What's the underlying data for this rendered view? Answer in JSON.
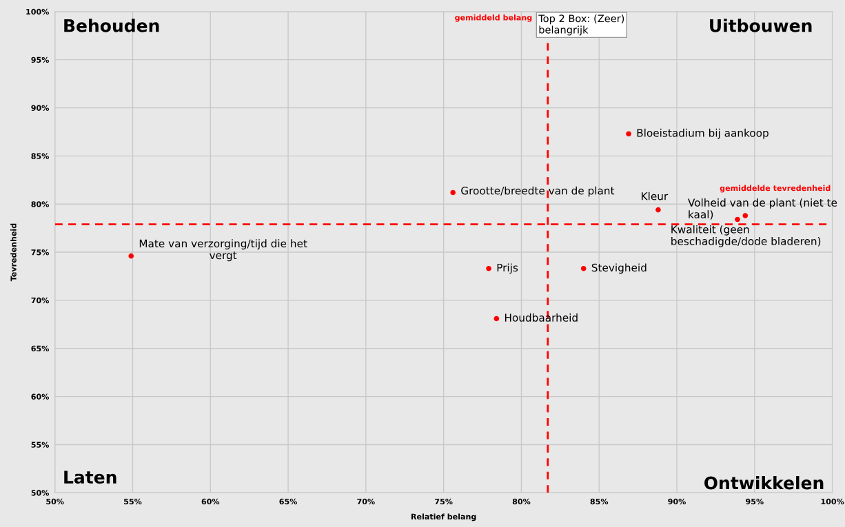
{
  "chart_data": {
    "type": "scatter",
    "xlabel": "Relatief belang",
    "ylabel": "Tevredenheid",
    "series": [
      {
        "color": "#ff0000",
        "x": [
          54.9,
          75.6,
          77.9,
          78.4,
          84.0,
          86.9,
          88.8,
          94.4,
          93.9
        ],
        "values": [
          74.6,
          81.2,
          73.3,
          68.1,
          73.3,
          87.3,
          79.4,
          78.8,
          78.4
        ]
      }
    ],
    "marker": "circle",
    "xlim": [
      50,
      100
    ],
    "xticks": [
      {
        "value": 50,
        "label": "50%"
      },
      {
        "value": 55,
        "label": "55%"
      },
      {
        "value": 60,
        "label": "60%"
      },
      {
        "value": 65,
        "label": "65%"
      },
      {
        "value": 70,
        "label": "70%"
      },
      {
        "value": 75,
        "label": "75%"
      },
      {
        "value": 80,
        "label": "80%"
      },
      {
        "value": 85,
        "label": "85%"
      },
      {
        "value": 90,
        "label": "90%"
      },
      {
        "value": 95,
        "label": "95%"
      },
      {
        "value": 100,
        "label": "100%"
      }
    ],
    "ylim": [
      50,
      100
    ],
    "yticks": [
      {
        "value": 50,
        "label": "50%"
      },
      {
        "value": 55,
        "label": "55%"
      },
      {
        "value": 60,
        "label": "60%"
      },
      {
        "value": 65,
        "label": "65%"
      },
      {
        "value": 70,
        "label": "70%"
      },
      {
        "value": 75,
        "label": "75%"
      },
      {
        "value": 80,
        "label": "80%"
      },
      {
        "value": 85,
        "label": "85%"
      },
      {
        "value": 90,
        "label": "90%"
      },
      {
        "value": 95,
        "label": "95%"
      },
      {
        "value": 100,
        "label": "100%"
      }
    ],
    "grid": true,
    "ref_lines": [
      {
        "axis": "x",
        "value": 81.7,
        "label": "gemiddeld belang",
        "color": "#ff0000",
        "line_style": "dashed"
      },
      {
        "axis": "y",
        "value": 77.9,
        "label": "gemiddelde tevredenheid",
        "color": "#ff0000",
        "line_style": "dashed"
      }
    ],
    "annotations": [
      {
        "text": "Mate van verzorging/tijd die het\nvergt",
        "x": 54.9,
        "y": 74.6
      },
      {
        "text": "Grootte/breedte van de plant",
        "x": 75.6,
        "y": 81.2
      },
      {
        "text": "Prijs",
        "x": 77.9,
        "y": 73.3
      },
      {
        "text": "Houdbaarheid",
        "x": 78.4,
        "y": 68.1
      },
      {
        "text": "Stevigheid",
        "x": 84.0,
        "y": 73.3
      },
      {
        "text": "Bloeistadium bij aankoop",
        "x": 86.9,
        "y": 87.3
      },
      {
        "text": "Kleur",
        "x": 88.8,
        "y": 79.4
      },
      {
        "text": "Volheid van de plant (niet te\nkaal)",
        "x": 94.4,
        "y": 78.8
      },
      {
        "text": "Kwaliteit (geen\nbeschadigde/dode bladeren)",
        "x": 93.9,
        "y": 78.4
      },
      "Behouden",
      "Uitbouwen",
      "Laten",
      "Ontwikkelen",
      "Top 2 Box: (Zeer)\nbelangrijk"
    ]
  }
}
